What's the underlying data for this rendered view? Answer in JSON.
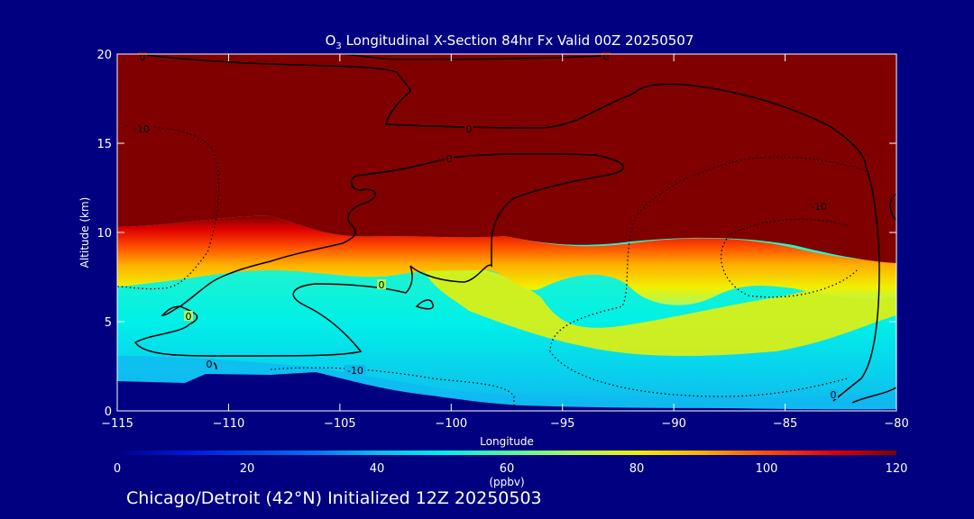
{
  "chart_data": {
    "type": "heatmap",
    "title_prefix": "O",
    "title_sub": "3",
    "title_rest": " Longitudinal X-Section 84hr  Fx Valid 00Z 20250507",
    "xlabel": "Longitude",
    "ylabel": "Altitude (km)",
    "xlim": [
      -115,
      -80
    ],
    "ylim": [
      0,
      20
    ],
    "xticks": [
      "-115",
      "-110",
      "-105",
      "-100",
      "-95",
      "-90",
      "-85",
      "-80"
    ],
    "yticks": [
      "0",
      "5",
      "10",
      "15",
      "20"
    ],
    "colorbar": {
      "range": [
        0,
        120
      ],
      "ticks": [
        "0",
        "20",
        "40",
        "60",
        "80",
        "100",
        "120"
      ],
      "unit_label": "(ppbv)",
      "colors": [
        "#000080",
        "#0018d8",
        "#0a6ef0",
        "#10b8f0",
        "#00f0e8",
        "#50f8a0",
        "#a8f860",
        "#f0f000",
        "#ffb000",
        "#ff5000",
        "#e00000",
        "#800000"
      ]
    },
    "fill_levels_ppbv": {
      "stratosphere": 120,
      "tropopause_band": [
        100,
        80,
        70
      ],
      "mid_troposphere": 55,
      "lower_troposphere": 45,
      "surface_layer": 40,
      "terrain": 0
    },
    "tropopause_km": [
      {
        "lon": -115,
        "km": 9.8
      },
      {
        "lon": -110,
        "km": 10.4
      },
      {
        "lon": -108,
        "km": 10.6
      },
      {
        "lon": -105,
        "km": 9.9
      },
      {
        "lon": -100,
        "km": 9.6
      },
      {
        "lon": -95,
        "km": 9.4
      },
      {
        "lon": -90,
        "km": 9.5
      },
      {
        "lon": -85,
        "km": 9.0
      },
      {
        "lon": -80,
        "km": 8.3
      }
    ],
    "terrain_km": [
      {
        "lon": -115,
        "km": 1.6
      },
      {
        "lon": -110,
        "km": 2.0
      },
      {
        "lon": -106,
        "km": 2.2
      },
      {
        "lon": -102,
        "km": 1.0
      },
      {
        "lon": -98,
        "km": 0.4
      },
      {
        "lon": -90,
        "km": 0.2
      },
      {
        "lon": -80,
        "km": 0.2
      }
    ],
    "contour_labels": [
      "0",
      "0",
      "0",
      "0",
      "0",
      "0",
      "0",
      "0",
      "-10",
      "-10",
      "-10"
    ]
  },
  "footer": "Chicago/Detroit (42°N) Initialized 12Z 20250503"
}
